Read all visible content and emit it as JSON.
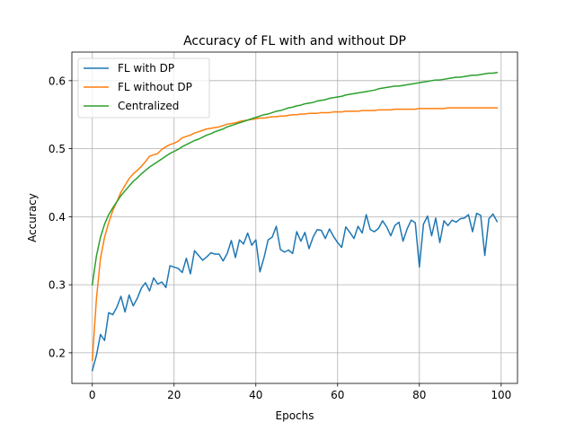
{
  "chart_data": {
    "type": "line",
    "title": "Accuracy of FL with and without DP",
    "xlabel": "Epochs",
    "ylabel": "Accuracy",
    "xlim": [
      -5,
      104
    ],
    "ylim": [
      0.155,
      0.642
    ],
    "xticks": [
      0,
      20,
      40,
      60,
      80,
      100
    ],
    "yticks": [
      0.2,
      0.3,
      0.4,
      0.5,
      0.6
    ],
    "ytick_labels": [
      "0.2",
      "0.3",
      "0.4",
      "0.5",
      "0.6"
    ],
    "grid": true,
    "legend_position": "top-left",
    "colors": {
      "fl_dp": "#1f77b4",
      "fl_no_dp": "#ff7f0e",
      "centralized": "#2ca02c"
    },
    "series": [
      {
        "name": "FL with DP",
        "color": "#1f77b4",
        "values": [
          0.174,
          0.196,
          0.227,
          0.218,
          0.259,
          0.256,
          0.267,
          0.283,
          0.26,
          0.285,
          0.269,
          0.28,
          0.295,
          0.303,
          0.291,
          0.31,
          0.301,
          0.304,
          0.296,
          0.328,
          0.326,
          0.324,
          0.318,
          0.339,
          0.316,
          0.35,
          0.343,
          0.336,
          0.341,
          0.347,
          0.345,
          0.345,
          0.335,
          0.346,
          0.365,
          0.34,
          0.366,
          0.36,
          0.376,
          0.358,
          0.366,
          0.319,
          0.34,
          0.366,
          0.37,
          0.386,
          0.352,
          0.348,
          0.351,
          0.346,
          0.378,
          0.364,
          0.377,
          0.353,
          0.37,
          0.381,
          0.38,
          0.368,
          0.382,
          0.371,
          0.362,
          0.355,
          0.385,
          0.377,
          0.368,
          0.386,
          0.376,
          0.403,
          0.381,
          0.378,
          0.383,
          0.394,
          0.385,
          0.372,
          0.387,
          0.392,
          0.364,
          0.382,
          0.395,
          0.391,
          0.326,
          0.389,
          0.401,
          0.372,
          0.398,
          0.362,
          0.394,
          0.387,
          0.395,
          0.392,
          0.397,
          0.398,
          0.403,
          0.378,
          0.405,
          0.402,
          0.343,
          0.397,
          0.404,
          0.393
        ]
      },
      {
        "name": "FL without DP",
        "color": "#ff7f0e",
        "values": [
          0.189,
          0.279,
          0.339,
          0.37,
          0.391,
          0.409,
          0.422,
          0.436,
          0.446,
          0.456,
          0.463,
          0.468,
          0.474,
          0.481,
          0.489,
          0.491,
          0.493,
          0.499,
          0.503,
          0.506,
          0.508,
          0.511,
          0.516,
          0.518,
          0.52,
          0.523,
          0.525,
          0.527,
          0.529,
          0.53,
          0.531,
          0.532,
          0.534,
          0.536,
          0.537,
          0.538,
          0.54,
          0.541,
          0.542,
          0.543,
          0.544,
          0.545,
          0.545,
          0.546,
          0.547,
          0.547,
          0.548,
          0.548,
          0.549,
          0.55,
          0.55,
          0.551,
          0.551,
          0.552,
          0.552,
          0.552,
          0.553,
          0.553,
          0.553,
          0.554,
          0.554,
          0.554,
          0.555,
          0.555,
          0.555,
          0.555,
          0.556,
          0.556,
          0.556,
          0.556,
          0.557,
          0.557,
          0.557,
          0.557,
          0.558,
          0.558,
          0.558,
          0.558,
          0.558,
          0.558,
          0.559,
          0.559,
          0.559,
          0.559,
          0.559,
          0.559,
          0.559,
          0.56,
          0.56,
          0.56,
          0.56,
          0.56,
          0.56,
          0.56,
          0.56,
          0.56,
          0.56,
          0.56,
          0.56,
          0.56
        ]
      },
      {
        "name": "Centralized",
        "color": "#2ca02c",
        "values": [
          0.3,
          0.342,
          0.37,
          0.389,
          0.403,
          0.413,
          0.422,
          0.431,
          0.438,
          0.445,
          0.452,
          0.457,
          0.463,
          0.468,
          0.473,
          0.477,
          0.481,
          0.485,
          0.489,
          0.493,
          0.496,
          0.499,
          0.503,
          0.506,
          0.509,
          0.512,
          0.514,
          0.517,
          0.52,
          0.522,
          0.525,
          0.527,
          0.529,
          0.532,
          0.534,
          0.536,
          0.538,
          0.54,
          0.542,
          0.544,
          0.546,
          0.548,
          0.55,
          0.551,
          0.553,
          0.555,
          0.556,
          0.558,
          0.56,
          0.561,
          0.563,
          0.564,
          0.566,
          0.567,
          0.568,
          0.57,
          0.571,
          0.572,
          0.574,
          0.575,
          0.576,
          0.577,
          0.579,
          0.58,
          0.581,
          0.582,
          0.583,
          0.584,
          0.585,
          0.586,
          0.588,
          0.589,
          0.59,
          0.591,
          0.592,
          0.592,
          0.593,
          0.594,
          0.595,
          0.596,
          0.597,
          0.598,
          0.599,
          0.6,
          0.601,
          0.601,
          0.602,
          0.603,
          0.604,
          0.605,
          0.605,
          0.606,
          0.607,
          0.608,
          0.608,
          0.609,
          0.61,
          0.611,
          0.611,
          0.612
        ]
      }
    ]
  }
}
